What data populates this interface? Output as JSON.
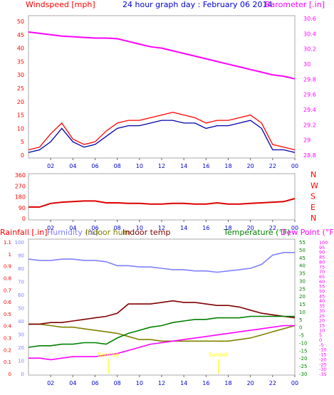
{
  "header": {
    "left_title": "Windspeed [mph]",
    "center_title": "24 hour graph day : February 06 2014",
    "right_title": "Barometer [.in]"
  },
  "time_ticks": [
    "02",
    "04",
    "06",
    "08",
    "10",
    "12",
    "14",
    "16",
    "18",
    "20",
    "22",
    "00"
  ],
  "colors": {
    "wind": "#ff0000",
    "wind_avg": "#0000aa",
    "baro": "#ff00ff",
    "dir": "#dd0000",
    "rain": "#ff0000",
    "humidity": "#8080ff",
    "indoor_hum": "#808000",
    "indoor_temp": "#800000",
    "temperature": "#008000",
    "dewpoint": "#ff00ff",
    "marker": "#ffff00"
  },
  "chart_data": [
    {
      "type": "line",
      "title": "",
      "ylabel": "Windspeed [mph]",
      "y2label": "Barometer [.in]",
      "ylim": [
        0,
        50
      ],
      "y2lim": [
        28.8,
        30.8
      ],
      "yticks": [
        "0",
        "5",
        "10",
        "15",
        "20",
        "25",
        "30",
        "35",
        "40",
        "45",
        "50"
      ],
      "y2ticks": [
        "28.8",
        "29",
        "29.2",
        "29.4",
        "29.6",
        "29.8",
        "30",
        "30.2",
        "30.4",
        "30.6"
      ],
      "x_hours": [
        0,
        1,
        2,
        3,
        4,
        5,
        6,
        7,
        8,
        9,
        10,
        11,
        12,
        13,
        14,
        15,
        16,
        17,
        18,
        19,
        20,
        21,
        22,
        23,
        24
      ],
      "series": [
        {
          "name": "Windspeed [mph]",
          "axis": "left",
          "values": [
            2,
            3,
            8,
            12,
            6,
            4,
            5,
            9,
            12,
            13,
            13,
            14,
            15,
            16,
            15,
            14,
            12,
            13,
            13,
            14,
            15,
            12,
            4,
            3,
            2
          ]
        },
        {
          "name": "Average wind",
          "axis": "left",
          "values": [
            1,
            2,
            5,
            10,
            5,
            3,
            4,
            7,
            10,
            11,
            11,
            12,
            13,
            13,
            12,
            12,
            10,
            11,
            11,
            12,
            13,
            10,
            2,
            2,
            1
          ]
        },
        {
          "name": "Barometer [.in]",
          "axis": "right",
          "values": [
            30.64,
            30.62,
            30.6,
            30.58,
            30.57,
            30.56,
            30.55,
            30.55,
            30.54,
            30.5,
            30.46,
            30.42,
            30.4,
            30.36,
            30.32,
            30.28,
            30.24,
            30.2,
            30.16,
            30.12,
            30.08,
            30.04,
            30.0,
            29.98,
            29.94
          ]
        }
      ]
    },
    {
      "type": "line",
      "title": "",
      "ylim": [
        0,
        360
      ],
      "yticks": [
        "0",
        "90",
        "180",
        "270",
        "360"
      ],
      "y2ticks": [
        "N",
        "W",
        "S",
        "E",
        "N"
      ],
      "x_hours": [
        0,
        1,
        2,
        3,
        4,
        5,
        6,
        7,
        8,
        9,
        10,
        11,
        12,
        13,
        14,
        15,
        16,
        17,
        18,
        19,
        20,
        21,
        22,
        23,
        24
      ],
      "series": [
        {
          "name": "Wind direction",
          "values": [
            95,
            95,
            125,
            135,
            140,
            145,
            145,
            130,
            130,
            125,
            125,
            120,
            120,
            125,
            125,
            120,
            120,
            130,
            120,
            120,
            125,
            130,
            135,
            140,
            165
          ]
        }
      ]
    },
    {
      "type": "line",
      "title": "",
      "legend": [
        "Rainfall [.in]",
        "Humidity (%)",
        "Indoor hum",
        "Indoor temp",
        "Temperature (°F)",
        "Dew Point (°F)"
      ],
      "rain_ylim": [
        0,
        1.1
      ],
      "rain_ticks": [
        "0",
        "0.1",
        "0.2",
        "0.3",
        "0.4",
        "0.5",
        "0.6",
        "0.7",
        "0.8",
        "0.9",
        "1",
        "1.1"
      ],
      "hum_ylim": [
        0,
        100
      ],
      "hum_ticks": [
        "0",
        "10",
        "20",
        "30",
        "40",
        "50",
        "60",
        "70",
        "80",
        "90",
        "100"
      ],
      "temp_ylim": [
        -30,
        55
      ],
      "temp_ticks": [
        "-30",
        "-25",
        "-20",
        "-15",
        "-10",
        "-5",
        "0",
        "5",
        "10",
        "15",
        "20",
        "25",
        "30",
        "35",
        "40",
        "45",
        "50",
        "55"
      ],
      "dew_ylim": [
        -35,
        100
      ],
      "dew_ticks": [
        "-35",
        "-30",
        "-25",
        "-20",
        "-15",
        "-10",
        "-5",
        "0",
        "5",
        "10",
        "15",
        "20",
        "25",
        "30",
        "35",
        "40",
        "45",
        "50",
        "55",
        "60",
        "65",
        "70",
        "75",
        "80",
        "85",
        "90",
        "95",
        "100"
      ],
      "x_hours": [
        0,
        1,
        2,
        3,
        4,
        5,
        6,
        7,
        8,
        9,
        10,
        11,
        12,
        13,
        14,
        15,
        16,
        17,
        18,
        19,
        20,
        21,
        22,
        23,
        24
      ],
      "series": [
        {
          "name": "Humidity (%)",
          "axis": "hum",
          "values": [
            87,
            86,
            86,
            87,
            87,
            86,
            86,
            85,
            82,
            82,
            81,
            81,
            80,
            79,
            79,
            78,
            78,
            77,
            78,
            79,
            80,
            83,
            90,
            92,
            92
          ]
        },
        {
          "name": "Indoor hum",
          "axis": "temp",
          "values": [
            2,
            2,
            1,
            0,
            0,
            -1,
            -2,
            -3,
            -4,
            -6,
            -8,
            -8,
            -9,
            -9,
            -9,
            -9,
            -9,
            -9,
            -9,
            -8,
            -7,
            -5,
            -3,
            -1,
            1
          ]
        },
        {
          "name": "Indoor temp",
          "axis": "temp",
          "values": [
            2,
            2,
            3,
            3,
            4,
            5,
            6,
            7,
            9,
            15,
            15,
            15,
            16,
            17,
            16,
            16,
            15,
            14,
            14,
            13,
            11,
            9,
            8,
            7,
            6
          ]
        },
        {
          "name": "Temperature (°F)",
          "axis": "temp",
          "values": [
            -13,
            -12,
            -12,
            -11,
            -11,
            -10,
            -10,
            -11,
            -7,
            -4,
            -2,
            0,
            1,
            3,
            4,
            5,
            5,
            6,
            6,
            6,
            7,
            7,
            7,
            7,
            7
          ]
        },
        {
          "name": "Dew Point (°F)",
          "axis": "temp",
          "values": [
            -20,
            -20,
            -21,
            -20,
            -19,
            -19,
            -19,
            -18,
            -17,
            -15,
            -13,
            -11,
            -10,
            -9,
            -8,
            -7,
            -6,
            -5,
            -4,
            -3,
            -2,
            -1,
            0,
            1,
            1
          ]
        }
      ],
      "annotations": [
        {
          "text": "Sunrise",
          "hour": 7.2
        },
        {
          "text": "Sunset",
          "hour": 17.1
        }
      ]
    }
  ]
}
